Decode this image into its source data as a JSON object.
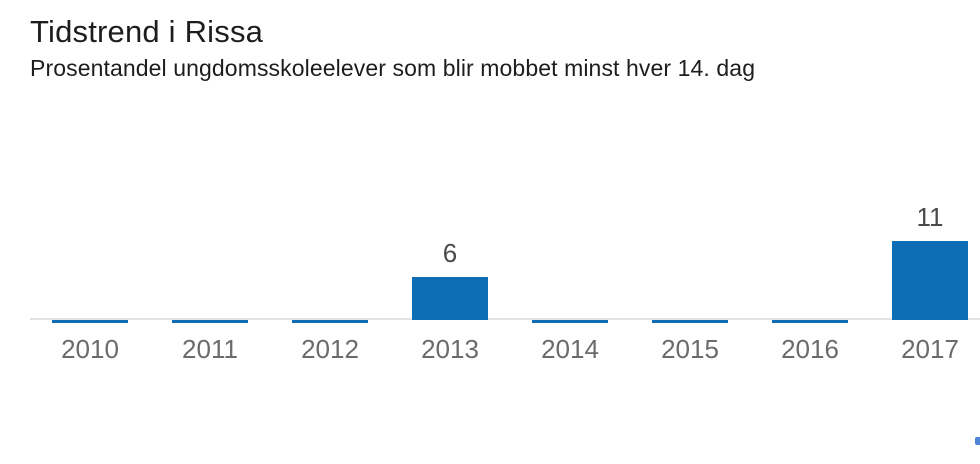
{
  "header": {
    "title": "Tidstrend i Rissa",
    "subtitle": "Prosentandel ungdomsskoleelever som blir mobbet minst hver 14. dag"
  },
  "chart_data": {
    "type": "bar",
    "title": "Tidstrend i Rissa",
    "subtitle": "Prosentandel ungdomsskoleelever som blir mobbet minst hver 14. dag",
    "categories": [
      "2010",
      "2011",
      "2012",
      "2013",
      "2014",
      "2015",
      "2016",
      "2017"
    ],
    "values": [
      0,
      0,
      0,
      6,
      0,
      0,
      0,
      11
    ],
    "data_labels": [
      "",
      "",
      "",
      "6",
      "",
      "",
      "",
      "11"
    ],
    "xlabel": "",
    "ylabel": "",
    "ylim": [
      0,
      12.5
    ],
    "grid": false,
    "legend_position": "none",
    "bar_color": "#0d6eb5",
    "axis_line_color": "#e2e2e2",
    "data_label_color": "#4a4a4a",
    "tick_label_color": "#6b6b6b"
  },
  "misc": {
    "edge_widget_color": "#4f86d8"
  }
}
